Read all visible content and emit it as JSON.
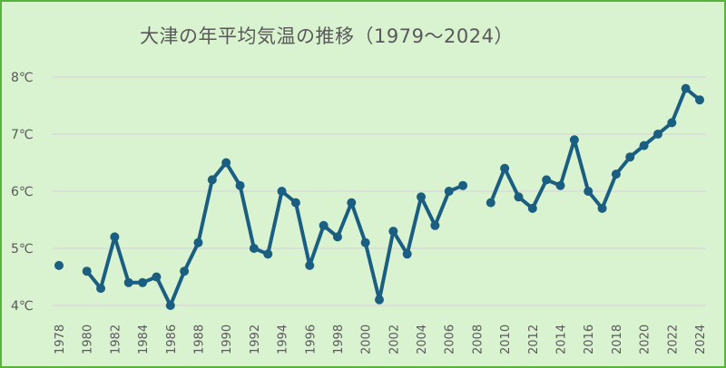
{
  "chart_data": {
    "type": "line",
    "title": "大津の年平均気温の推移（1979～2024）",
    "xlabel": "",
    "ylabel": "",
    "ylim": [
      4,
      8
    ],
    "y_ticks": [
      "4℃",
      "5℃",
      "6℃",
      "7℃",
      "8℃"
    ],
    "x_ticks": [
      "1978",
      "1980",
      "1982",
      "1984",
      "1986",
      "1988",
      "1990",
      "1992",
      "1994",
      "1996",
      "1998",
      "2000",
      "2002",
      "2004",
      "2006",
      "2008",
      "2010",
      "2012",
      "2014",
      "2016",
      "2018",
      "2020",
      "2022",
      "2024"
    ],
    "grid": "horizontal",
    "legend": "none",
    "series": [
      {
        "name": "年平均気温",
        "color": "#1a5e82",
        "x": [
          1978,
          1979,
          1980,
          1981,
          1982,
          1983,
          1984,
          1985,
          1986,
          1987,
          1988,
          1989,
          1990,
          1991,
          1992,
          1993,
          1994,
          1995,
          1996,
          1997,
          1998,
          1999,
          2000,
          2001,
          2002,
          2003,
          2004,
          2005,
          2006,
          2007,
          2008,
          2009,
          2010,
          2011,
          2012,
          2013,
          2014,
          2015,
          2016,
          2017,
          2018,
          2019,
          2020,
          2021,
          2022,
          2023,
          2024
        ],
        "values": [
          4.7,
          null,
          4.6,
          4.3,
          5.2,
          4.4,
          4.4,
          4.5,
          4.0,
          4.6,
          5.1,
          6.2,
          6.5,
          6.1,
          5.0,
          4.9,
          6.0,
          5.8,
          4.7,
          5.4,
          5.2,
          5.8,
          5.1,
          4.1,
          5.3,
          4.9,
          5.9,
          5.4,
          6.0,
          6.1,
          null,
          5.8,
          6.4,
          5.9,
          5.7,
          6.2,
          6.1,
          6.9,
          6.0,
          5.7,
          6.3,
          6.6,
          6.8,
          7.0,
          7.2,
          7.8,
          7.6
        ]
      }
    ]
  },
  "colors": {
    "background": "#d9f2d0",
    "border": "#58b33a",
    "line": "#1a5e82",
    "grid": "#d9d9d9",
    "text": "#595959"
  }
}
